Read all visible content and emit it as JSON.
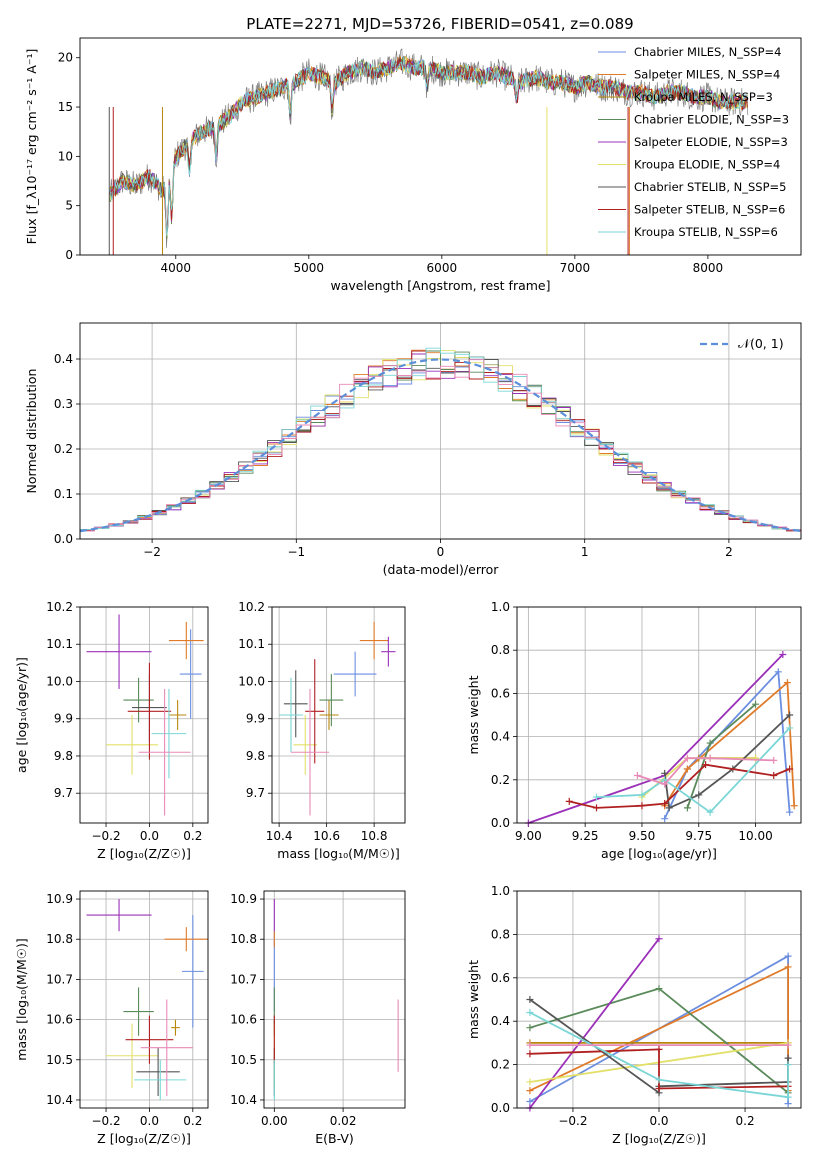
{
  "figure": {
    "title": "PLATE=2271, MJD=53726, FIBERID=0541, z=0.089"
  },
  "colors": {
    "Chabrier MILES": "#6b8ee0",
    "Salpeter MILES": "#e07b2a",
    "Kroupa MILES": "#b8860b",
    "Chabrier ELODIE": "#5a8a5a",
    "Salpeter ELODIE": "#9b30b8",
    "Kroupa ELODIE": "#e3e06a",
    "Chabrier STELIB": "#555555",
    "Salpeter STELIB": "#b02020",
    "Kroupa STELIB": "#7ad6d6",
    "Pink": "#e88ab8",
    "Normal": "#5b8fd9",
    "Spectrum": "#7f7f7f"
  },
  "chart_data": [
    {
      "id": "spectrum",
      "type": "line",
      "xlabel": "wavelength [Angstrom, rest frame]",
      "ylabel": "Flux [f_λ10⁻¹⁷ erg cm⁻² s⁻¹ A⁻¹]",
      "xlim": [
        3280,
        8700
      ],
      "ylim": [
        0,
        22
      ],
      "xticks": [
        4000,
        5000,
        6000,
        7000,
        8000
      ],
      "yticks": [
        0,
        5,
        10,
        15,
        20
      ],
      "grid": false,
      "legend_position": "top-right",
      "legend": [
        {
          "label": "Chabrier MILES, N_SSP=4",
          "color": "#6b8ee0"
        },
        {
          "label": "Salpeter MILES, N_SSP=4",
          "color": "#e07b2a"
        },
        {
          "label": "Kroupa MILES, N_SSP=3",
          "color": "#b8860b"
        },
        {
          "label": "Chabrier ELODIE, N_SSP=3",
          "color": "#5a8a5a"
        },
        {
          "label": "Salpeter ELODIE, N_SSP=3",
          "color": "#9b30b8"
        },
        {
          "label": "Kroupa ELODIE, N_SSP=4",
          "color": "#e3e06a"
        },
        {
          "label": "Chabrier STELIB, N_SSP=5",
          "color": "#555555"
        },
        {
          "label": "Salpeter STELIB, N_SSP=6",
          "color": "#b02020"
        },
        {
          "label": "Kroupa STELIB, N_SSP=6",
          "color": "#7ad6d6"
        }
      ],
      "x": [
        3500,
        3600,
        3700,
        3800,
        3900,
        4000,
        4100,
        4200,
        4300,
        4400,
        4500,
        4600,
        4700,
        4800,
        4900,
        5000,
        5100,
        5200,
        5300,
        5400,
        5500,
        5600,
        5700,
        5800,
        5900,
        6000,
        6100,
        6200,
        6300,
        6400,
        6500,
        6600,
        6700,
        6800,
        6900,
        7000,
        7100,
        7200,
        7300,
        7400,
        7500,
        7600,
        7700,
        7800,
        7900,
        8000,
        8100,
        8200,
        8300
      ],
      "y": [
        6.0,
        7.5,
        7.0,
        8.0,
        6.5,
        10.0,
        11.5,
        12.5,
        13.0,
        14.0,
        15.5,
        16.0,
        16.5,
        17.0,
        17.5,
        18.5,
        18.0,
        17.5,
        18.5,
        19.0,
        18.5,
        19.0,
        19.5,
        19.0,
        19.0,
        18.5,
        18.5,
        18.5,
        18.0,
        18.5,
        18.0,
        17.5,
        18.0,
        17.5,
        17.5,
        17.0,
        17.5,
        17.0,
        17.0,
        16.5,
        16.5,
        16.0,
        16.5,
        16.5,
        16.0,
        16.0,
        15.5,
        15.5,
        15.5
      ]
    },
    {
      "id": "residuals",
      "type": "histogram",
      "xlabel": "(data-model)/error",
      "ylabel": "Normed distribution",
      "xlim": [
        -2.5,
        2.5
      ],
      "ylim": [
        0,
        0.48
      ],
      "xticks": [
        -2,
        -1,
        0,
        1,
        2
      ],
      "yticks": [
        0.0,
        0.1,
        0.2,
        0.3,
        0.4
      ],
      "grid": true,
      "legend_position": "top-right",
      "legend": [
        {
          "label": "𝒩(0, 1)",
          "color": "#5b8fd9",
          "style": "dashed"
        }
      ],
      "bin_width": 0.1
    },
    {
      "id": "age_vs_Z",
      "type": "scatter",
      "xlabel": "Z [log₁₀(Z/Z☉)]",
      "ylabel": "age  [log₁₀(age/yr)]",
      "xlim": [
        -0.32,
        0.27
      ],
      "ylim": [
        9.62,
        10.2
      ],
      "xticks": [
        -0.2,
        0.0,
        0.2
      ],
      "yticks": [
        9.7,
        9.8,
        9.9,
        10.0,
        10.1,
        10.2
      ],
      "grid": true,
      "points": [
        {
          "series": "Chabrier MILES",
          "x": 0.19,
          "y": 10.02,
          "xerr": 0.05,
          "yerr": 0.12
        },
        {
          "series": "Salpeter MILES",
          "x": 0.17,
          "y": 10.11,
          "xerr": 0.08,
          "yerr": 0.05
        },
        {
          "series": "Kroupa MILES",
          "x": 0.13,
          "y": 9.91,
          "xerr": 0.04,
          "yerr": 0.04
        },
        {
          "series": "Chabrier ELODIE",
          "x": -0.05,
          "y": 9.95,
          "xerr": 0.07,
          "yerr": 0.06
        },
        {
          "series": "Salpeter ELODIE",
          "x": -0.14,
          "y": 10.08,
          "xerr": 0.15,
          "yerr": 0.1
        },
        {
          "series": "Kroupa ELODIE",
          "x": -0.08,
          "y": 9.83,
          "xerr": 0.12,
          "yerr": 0.08
        },
        {
          "series": "Chabrier STELIB",
          "x": 0.0,
          "y": 9.93,
          "xerr": 0.08,
          "yerr": 0.09
        },
        {
          "series": "Salpeter STELIB",
          "x": 0.0,
          "y": 9.92,
          "xerr": 0.1,
          "yerr": 0.13
        },
        {
          "series": "Kroupa STELIB",
          "x": 0.09,
          "y": 9.86,
          "xerr": 0.08,
          "yerr": 0.12
        },
        {
          "series": "Pink",
          "x": 0.07,
          "y": 9.81,
          "xerr": 0.12,
          "yerr": 0.17
        }
      ]
    },
    {
      "id": "age_vs_mass",
      "type": "scatter",
      "xlabel": "mass [log₁₀(M/M☉)]",
      "ylabel": "",
      "xlim": [
        10.37,
        10.93
      ],
      "ylim": [
        9.62,
        10.2
      ],
      "xticks": [
        10.4,
        10.6,
        10.8
      ],
      "yticks": [
        9.7,
        9.8,
        9.9,
        10.0,
        10.1,
        10.2
      ],
      "grid": true,
      "points": [
        {
          "series": "Chabrier MILES",
          "x": 10.72,
          "y": 10.02,
          "xerr": 0.09,
          "yerr": 0.06
        },
        {
          "series": "Salpeter MILES",
          "x": 10.8,
          "y": 10.11,
          "xerr": 0.06,
          "yerr": 0.05
        },
        {
          "series": "Kroupa MILES",
          "x": 10.61,
          "y": 9.91,
          "xerr": 0.04,
          "yerr": 0.04
        },
        {
          "series": "Chabrier ELODIE",
          "x": 10.62,
          "y": 9.95,
          "xerr": 0.05,
          "yerr": 0.07
        },
        {
          "series": "Salpeter ELODIE",
          "x": 10.86,
          "y": 10.08,
          "xerr": 0.03,
          "yerr": 0.04
        },
        {
          "series": "Kroupa ELODIE",
          "x": 10.51,
          "y": 9.83,
          "xerr": 0.05,
          "yerr": 0.08
        },
        {
          "series": "Chabrier STELIB",
          "x": 10.47,
          "y": 9.94,
          "xerr": 0.05,
          "yerr": 0.09
        },
        {
          "series": "Salpeter STELIB",
          "x": 10.55,
          "y": 9.92,
          "xerr": 0.04,
          "yerr": 0.14
        },
        {
          "series": "Kroupa STELIB",
          "x": 10.45,
          "y": 9.91,
          "xerr": 0.05,
          "yerr": 0.1
        },
        {
          "series": "Pink",
          "x": 10.53,
          "y": 9.81,
          "xerr": 0.08,
          "yerr": 0.17
        }
      ]
    },
    {
      "id": "mass_weight_vs_age",
      "type": "line",
      "xlabel": "age  [log₁₀(age/yr)]",
      "ylabel": "mass weight",
      "xlim": [
        8.95,
        10.2
      ],
      "ylim": [
        0,
        1
      ],
      "xticks": [
        9.0,
        9.25,
        9.5,
        9.75,
        10.0
      ],
      "yticks": [
        0.0,
        0.2,
        0.4,
        0.6,
        0.8,
        1.0
      ],
      "grid": true,
      "series": [
        {
          "name": "Chabrier MILES",
          "x": [
            9.6,
            9.7,
            10.1,
            10.15
          ],
          "y": [
            0.02,
            0.25,
            0.7,
            0.05
          ]
        },
        {
          "name": "Salpeter MILES",
          "x": [
            9.6,
            9.7,
            10.14,
            10.17
          ],
          "y": [
            0.08,
            0.25,
            0.65,
            0.08
          ]
        },
        {
          "name": "Kroupa MILES",
          "x": [
            9.75,
            10.0
          ],
          "y": [
            0.3,
            0.3
          ]
        },
        {
          "name": "Chabrier ELODIE",
          "x": [
            9.7,
            9.8,
            10.0
          ],
          "y": [
            0.07,
            0.37,
            0.55
          ]
        },
        {
          "name": "Salpeter ELODIE",
          "x": [
            9.0,
            9.6,
            10.12
          ],
          "y": [
            0.0,
            0.22,
            0.78
          ]
        },
        {
          "name": "Kroupa ELODIE",
          "x": [
            9.5,
            9.7,
            9.8,
            10.0
          ],
          "y": [
            0.12,
            0.3,
            0.3,
            0.3
          ]
        },
        {
          "name": "Chabrier STELIB",
          "x": [
            9.6,
            9.62,
            9.75,
            9.9,
            10.15
          ],
          "y": [
            0.23,
            0.07,
            0.13,
            0.25,
            0.5
          ]
        },
        {
          "name": "Salpeter STELIB",
          "x": [
            9.18,
            9.3,
            9.5,
            9.6,
            9.78,
            10.08,
            10.15
          ],
          "y": [
            0.1,
            0.07,
            0.08,
            0.09,
            0.27,
            0.22,
            0.25
          ]
        },
        {
          "name": "Kroupa STELIB",
          "x": [
            9.3,
            9.5,
            9.6,
            9.8,
            10.15
          ],
          "y": [
            0.12,
            0.13,
            0.2,
            0.05,
            0.44
          ]
        },
        {
          "name": "Pink",
          "x": [
            9.48,
            9.6,
            9.7,
            9.8,
            10.08
          ],
          "y": [
            0.22,
            0.18,
            0.3,
            0.3,
            0.29
          ]
        }
      ]
    },
    {
      "id": "mass_vs_Z",
      "type": "scatter",
      "xlabel": "Z [log₁₀(Z/Z☉)]",
      "ylabel": "mass [log₁₀(M/M☉)]",
      "xlim": [
        -0.32,
        0.27
      ],
      "ylim": [
        10.38,
        10.92
      ],
      "xticks": [
        -0.2,
        0.0,
        0.2
      ],
      "yticks": [
        10.4,
        10.5,
        10.6,
        10.7,
        10.8,
        10.9
      ],
      "grid": true,
      "points": [
        {
          "series": "Chabrier MILES",
          "x": 0.2,
          "y": 10.72,
          "xerr": 0.05,
          "yerr": 0.14
        },
        {
          "series": "Salpeter MILES",
          "x": 0.17,
          "y": 10.8,
          "xerr": 0.1,
          "yerr": 0.03
        },
        {
          "series": "Kroupa MILES",
          "x": 0.12,
          "y": 10.58,
          "xerr": 0.02,
          "yerr": 0.02
        },
        {
          "series": "Chabrier ELODIE",
          "x": -0.05,
          "y": 10.62,
          "xerr": 0.07,
          "yerr": 0.06
        },
        {
          "series": "Salpeter ELODIE",
          "x": -0.14,
          "y": 10.86,
          "xerr": 0.15,
          "yerr": 0.04
        },
        {
          "series": "Kroupa ELODIE",
          "x": -0.08,
          "y": 10.51,
          "xerr": 0.12,
          "yerr": 0.08
        },
        {
          "series": "Chabrier STELIB",
          "x": 0.04,
          "y": 10.47,
          "xerr": 0.1,
          "yerr": 0.06
        },
        {
          "series": "Salpeter STELIB",
          "x": 0.0,
          "y": 10.55,
          "xerr": 0.11,
          "yerr": 0.06
        },
        {
          "series": "Kroupa STELIB",
          "x": 0.05,
          "y": 10.45,
          "xerr": 0.12,
          "yerr": 0.05
        },
        {
          "series": "Pink",
          "x": 0.08,
          "y": 10.53,
          "xerr": 0.12,
          "yerr": 0.12
        }
      ]
    },
    {
      "id": "mass_vs_ebv",
      "type": "scatter",
      "xlabel": "E(B-V)",
      "ylabel": "",
      "xlim": [
        -0.003,
        0.038
      ],
      "ylim": [
        10.38,
        10.92
      ],
      "xticks": [
        0.0,
        0.02
      ],
      "yticks": [
        10.4,
        10.5,
        10.6,
        10.7,
        10.8,
        10.9
      ],
      "grid": true,
      "points": [
        {
          "series": "Chabrier MILES",
          "x": 0.0,
          "y": 10.72,
          "xerr": 0.0,
          "yerr": 0.1
        },
        {
          "series": "Salpeter MILES",
          "x": 0.0,
          "y": 10.8,
          "xerr": 0.0,
          "yerr": 0.02
        },
        {
          "series": "Kroupa MILES",
          "x": 0.0,
          "y": 10.58,
          "xerr": 0.0,
          "yerr": 0.02
        },
        {
          "series": "Chabrier ELODIE",
          "x": 0.0,
          "y": 10.62,
          "xerr": 0.0,
          "yerr": 0.06
        },
        {
          "series": "Salpeter ELODIE",
          "x": 0.0,
          "y": 10.86,
          "xerr": 0.0,
          "yerr": 0.04
        },
        {
          "series": "Kroupa ELODIE",
          "x": 0.0,
          "y": 10.51,
          "xerr": 0.0,
          "yerr": 0.08
        },
        {
          "series": "Chabrier STELIB",
          "x": 0.0,
          "y": 10.47,
          "xerr": 0.0,
          "yerr": 0.06
        },
        {
          "series": "Salpeter STELIB",
          "x": 0.0,
          "y": 10.55,
          "xerr": 0.0,
          "yerr": 0.06
        },
        {
          "series": "Kroupa STELIB",
          "x": 0.0,
          "y": 10.45,
          "xerr": 0.0,
          "yerr": 0.05
        },
        {
          "series": "Pink",
          "x": 0.036,
          "y": 10.56,
          "xerr": 0.0,
          "yerr": 0.09
        }
      ]
    },
    {
      "id": "mass_weight_vs_Z",
      "type": "line",
      "xlabel": "Z [log₁₀(Z/Z☉)]",
      "ylabel": "mass weight",
      "xlim": [
        -0.33,
        0.33
      ],
      "ylim": [
        0,
        1
      ],
      "xticks": [
        -0.2,
        0.0,
        0.2
      ],
      "yticks": [
        0.0,
        0.2,
        0.4,
        0.6,
        0.8,
        1.0
      ],
      "grid": true,
      "series": [
        {
          "name": "Chabrier MILES",
          "x": [
            -0.3,
            0.3,
            0.3
          ],
          "y": [
            0.03,
            0.7,
            0.02
          ]
        },
        {
          "name": "Salpeter MILES",
          "x": [
            -0.3,
            0.3,
            0.3
          ],
          "y": [
            0.08,
            0.65,
            0.08
          ]
        },
        {
          "name": "Kroupa MILES",
          "x": [
            -0.3,
            0.3
          ],
          "y": [
            0.3,
            0.3
          ]
        },
        {
          "name": "Chabrier ELODIE",
          "x": [
            -0.3,
            0.0,
            0.3
          ],
          "y": [
            0.37,
            0.55,
            0.07
          ]
        },
        {
          "name": "Salpeter ELODIE",
          "x": [
            -0.3,
            0.0
          ],
          "y": [
            0.0,
            0.78
          ]
        },
        {
          "name": "Kroupa ELODIE",
          "x": [
            -0.3,
            0.3
          ],
          "y": [
            0.12,
            0.3
          ]
        },
        {
          "name": "Chabrier STELIB",
          "x": [
            -0.3,
            0.0,
            0.0,
            0.3,
            0.3
          ],
          "y": [
            0.5,
            0.07,
            0.1,
            0.12,
            0.23
          ]
        },
        {
          "name": "Salpeter STELIB",
          "x": [
            -0.3,
            0.0,
            0.0,
            0.3
          ],
          "y": [
            0.25,
            0.27,
            0.09,
            0.1
          ]
        },
        {
          "name": "Kroupa STELIB",
          "x": [
            -0.3,
            0.0,
            0.3,
            0.3
          ],
          "y": [
            0.44,
            0.13,
            0.05,
            0.2
          ]
        },
        {
          "name": "Pink",
          "x": [
            -0.3,
            0.3
          ],
          "y": [
            0.29,
            0.29
          ]
        }
      ]
    }
  ]
}
